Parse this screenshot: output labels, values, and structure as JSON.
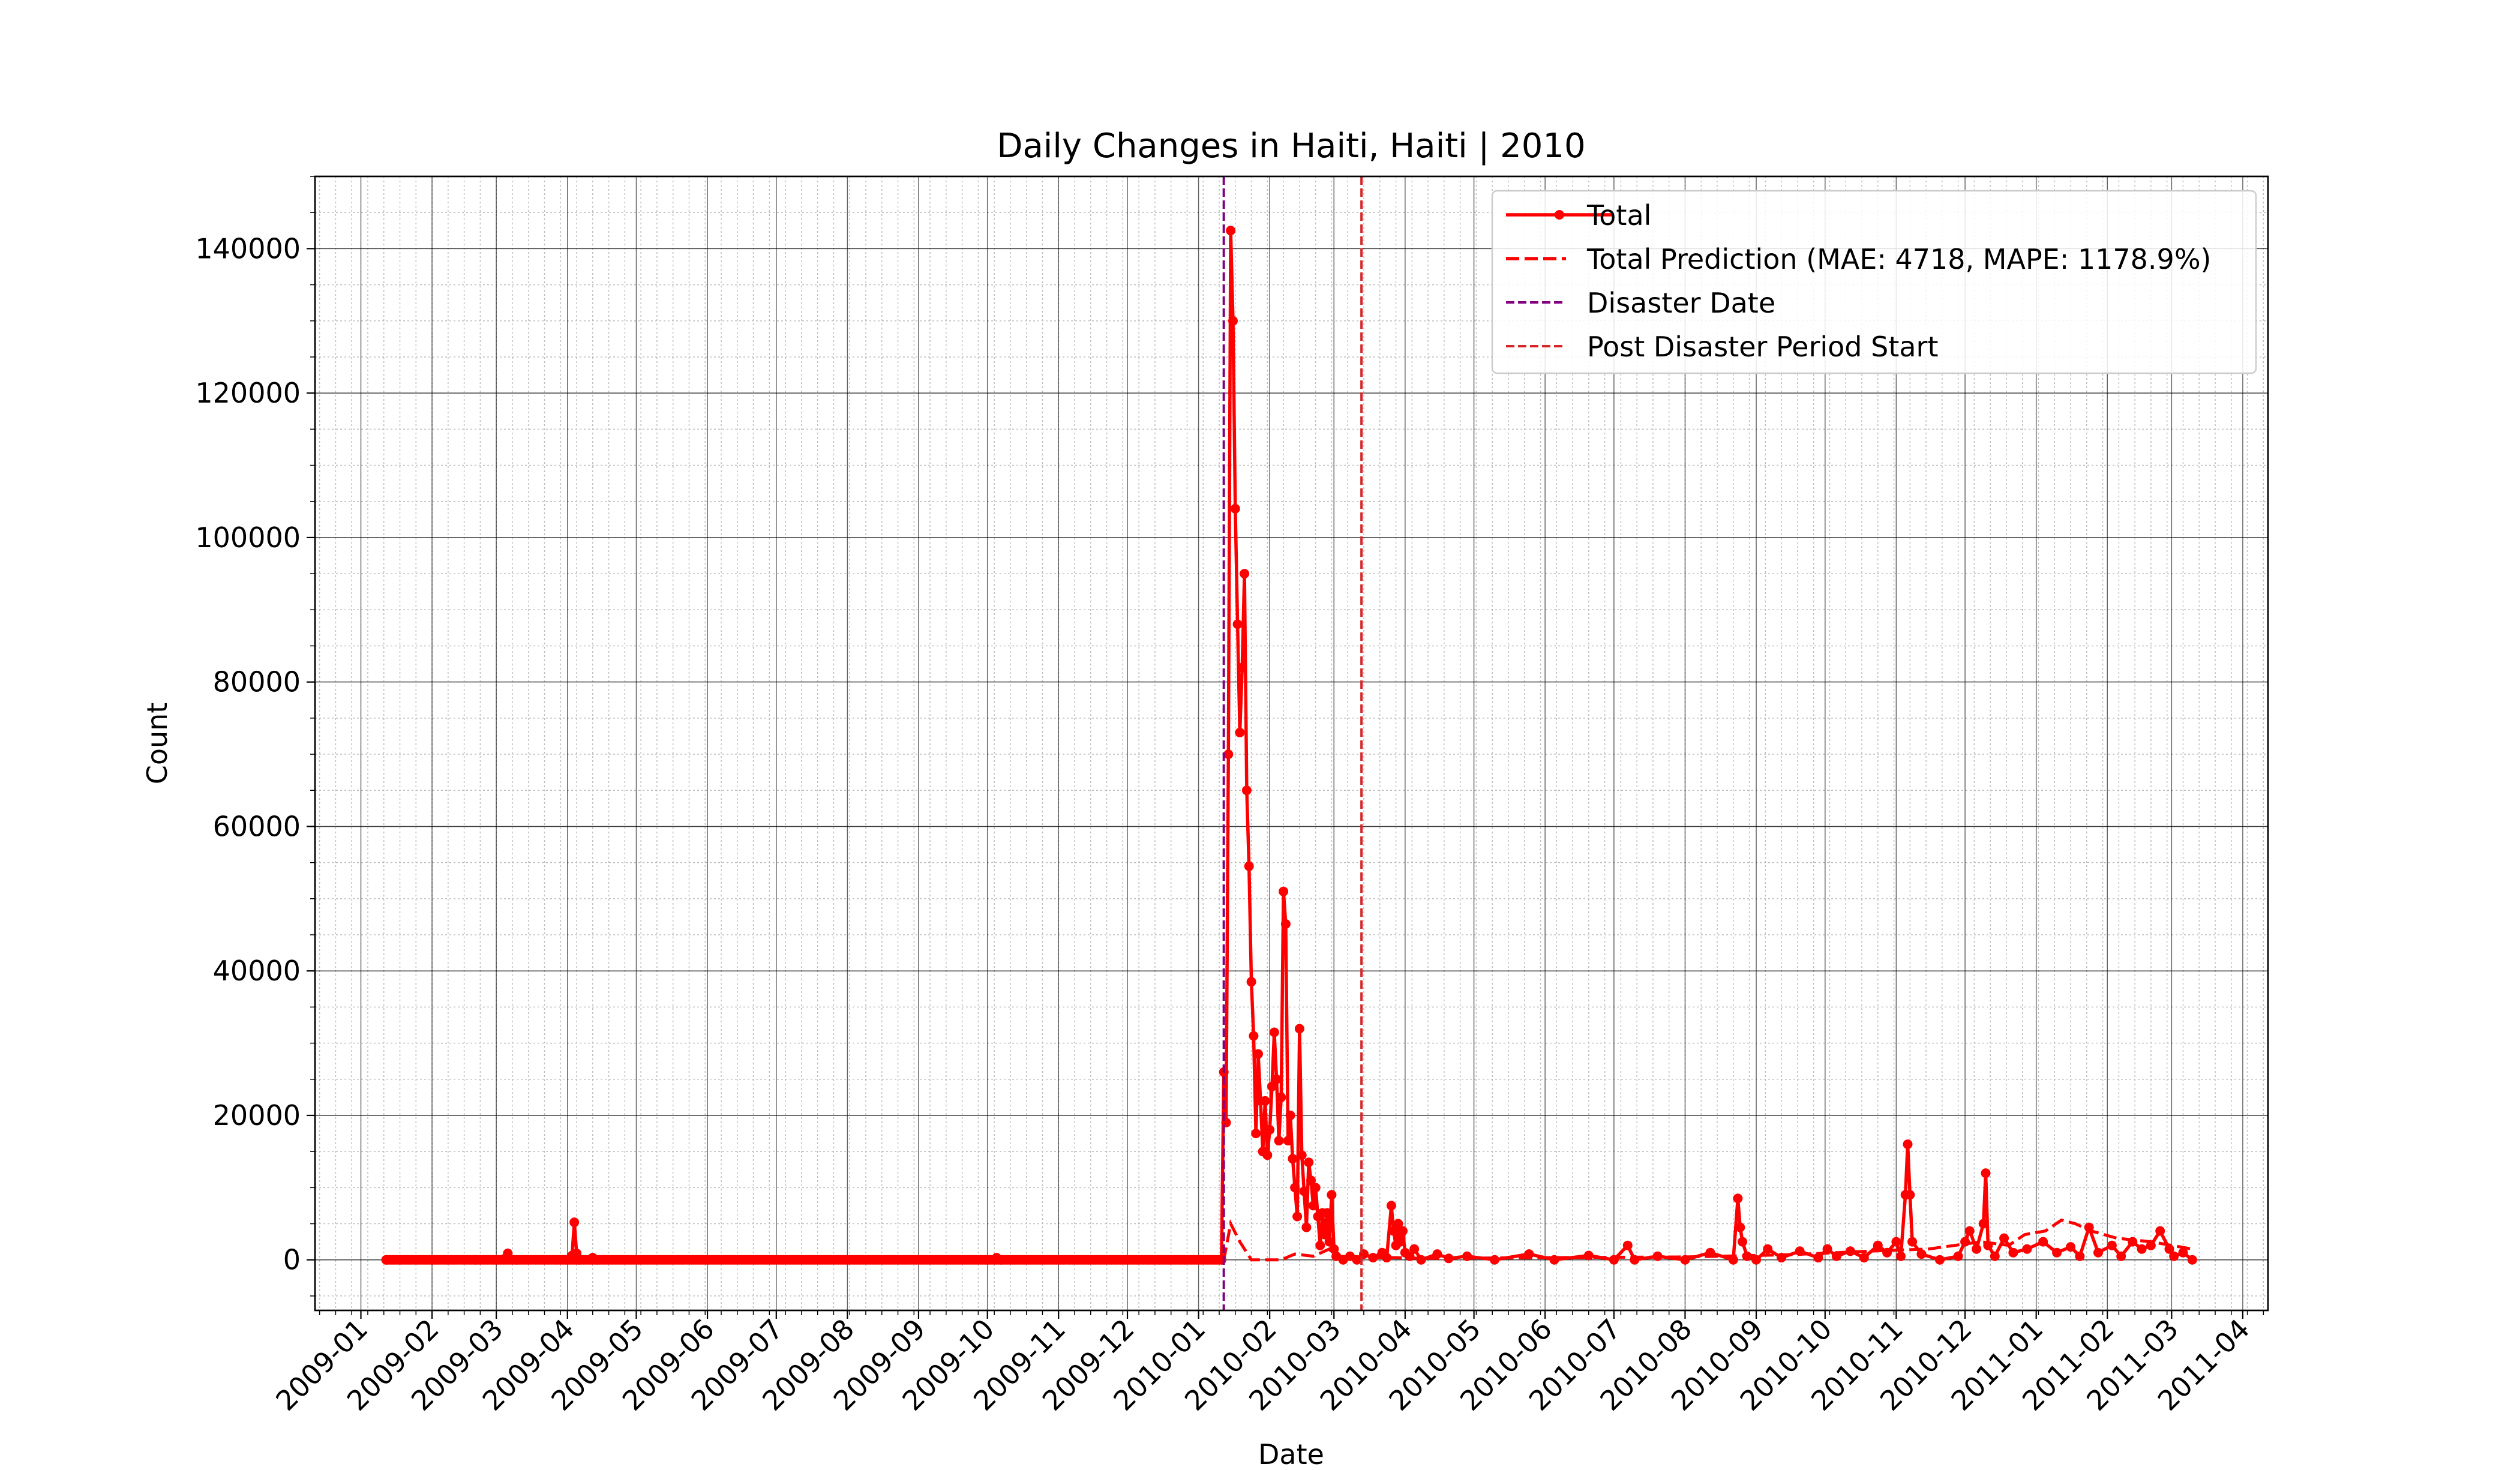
{
  "chart_data": {
    "type": "line",
    "title": "Daily Changes in Haiti, Haiti | 2010",
    "xlabel": "Date",
    "ylabel": "Count",
    "xlim": [
      "2008-12-12",
      "2011-04-12"
    ],
    "ylim": [
      -7000,
      150000
    ],
    "x_ticks": [
      "2009-01",
      "2009-02",
      "2009-03",
      "2009-04",
      "2009-05",
      "2009-06",
      "2009-07",
      "2009-08",
      "2009-09",
      "2009-10",
      "2009-11",
      "2009-12",
      "2010-01",
      "2010-02",
      "2010-03",
      "2010-04",
      "2010-05",
      "2010-06",
      "2010-07",
      "2010-08",
      "2010-09",
      "2010-10",
      "2010-11",
      "2010-12",
      "2011-01",
      "2011-02",
      "2011-03",
      "2011-04"
    ],
    "y_ticks": [
      0,
      20000,
      40000,
      60000,
      80000,
      100000,
      120000,
      140000
    ],
    "grid": true,
    "legend_position": "top-right",
    "series": [
      {
        "name": "Total",
        "color": "#ff0000",
        "style": "solid-markers",
        "points": [
          [
            "2009-01-12",
            0
          ],
          [
            "2009-02-01",
            0
          ],
          [
            "2009-02-20",
            0
          ],
          [
            "2009-03-01",
            0
          ],
          [
            "2009-03-06",
            900
          ],
          [
            "2009-03-10",
            0
          ],
          [
            "2009-04-01",
            0
          ],
          [
            "2009-04-03",
            600
          ],
          [
            "2009-04-04",
            5200
          ],
          [
            "2009-04-05",
            900
          ],
          [
            "2009-04-06",
            0
          ],
          [
            "2009-04-12",
            300
          ],
          [
            "2009-04-14",
            0
          ],
          [
            "2009-06-01",
            0
          ],
          [
            "2009-08-01",
            0
          ],
          [
            "2009-10-01",
            0
          ],
          [
            "2009-10-05",
            300
          ],
          [
            "2009-10-07",
            0
          ],
          [
            "2009-12-01",
            0
          ],
          [
            "2010-01-11",
            0
          ],
          [
            "2010-01-12",
            26000
          ],
          [
            "2010-01-13",
            19000
          ],
          [
            "2010-01-14",
            70000
          ],
          [
            "2010-01-15",
            142500
          ],
          [
            "2010-01-16",
            130000
          ],
          [
            "2010-01-17",
            104000
          ],
          [
            "2010-01-18",
            88000
          ],
          [
            "2010-01-19",
            73000
          ],
          [
            "2010-01-20",
            82000
          ],
          [
            "2010-01-21",
            95000
          ],
          [
            "2010-01-22",
            65000
          ],
          [
            "2010-01-23",
            54500
          ],
          [
            "2010-01-24",
            38500
          ],
          [
            "2010-01-25",
            31000
          ],
          [
            "2010-01-26",
            17500
          ],
          [
            "2010-01-27",
            28500
          ],
          [
            "2010-01-28",
            22000
          ],
          [
            "2010-01-29",
            15000
          ],
          [
            "2010-01-30",
            22000
          ],
          [
            "2010-01-31",
            14500
          ],
          [
            "2010-02-01",
            18000
          ],
          [
            "2010-02-02",
            24000
          ],
          [
            "2010-02-03",
            31500
          ],
          [
            "2010-02-04",
            25000
          ],
          [
            "2010-02-05",
            16500
          ],
          [
            "2010-02-06",
            22500
          ],
          [
            "2010-02-07",
            51000
          ],
          [
            "2010-02-08",
            46500
          ],
          [
            "2010-02-09",
            16500
          ],
          [
            "2010-02-10",
            20000
          ],
          [
            "2010-02-11",
            14000
          ],
          [
            "2010-02-12",
            10000
          ],
          [
            "2010-02-13",
            6000
          ],
          [
            "2010-02-14",
            32000
          ],
          [
            "2010-02-15",
            14500
          ],
          [
            "2010-02-16",
            9500
          ],
          [
            "2010-02-17",
            4500
          ],
          [
            "2010-02-18",
            13500
          ],
          [
            "2010-02-19",
            11000
          ],
          [
            "2010-02-20",
            7500
          ],
          [
            "2010-02-21",
            10000
          ],
          [
            "2010-02-22",
            6000
          ],
          [
            "2010-02-23",
            2000
          ],
          [
            "2010-02-24",
            6500
          ],
          [
            "2010-02-25",
            3500
          ],
          [
            "2010-02-26",
            6500
          ],
          [
            "2010-02-27",
            2500
          ],
          [
            "2010-02-28",
            9000
          ],
          [
            "2010-03-01",
            1500
          ],
          [
            "2010-03-02",
            500
          ],
          [
            "2010-03-05",
            0
          ],
          [
            "2010-03-08",
            500
          ],
          [
            "2010-03-11",
            0
          ],
          [
            "2010-03-14",
            800
          ],
          [
            "2010-03-18",
            300
          ],
          [
            "2010-03-22",
            1000
          ],
          [
            "2010-03-24",
            300
          ],
          [
            "2010-03-26",
            7500
          ],
          [
            "2010-03-27",
            4000
          ],
          [
            "2010-03-28",
            2000
          ],
          [
            "2010-03-29",
            5000
          ],
          [
            "2010-03-30",
            2500
          ],
          [
            "2010-03-31",
            4000
          ],
          [
            "2010-04-01",
            1000
          ],
          [
            "2010-04-03",
            500
          ],
          [
            "2010-04-05",
            1500
          ],
          [
            "2010-04-08",
            0
          ],
          [
            "2010-04-15",
            800
          ],
          [
            "2010-04-20",
            200
          ],
          [
            "2010-04-28",
            500
          ],
          [
            "2010-05-10",
            0
          ],
          [
            "2010-05-25",
            800
          ],
          [
            "2010-06-05",
            0
          ],
          [
            "2010-06-20",
            600
          ],
          [
            "2010-07-01",
            0
          ],
          [
            "2010-07-07",
            2000
          ],
          [
            "2010-07-10",
            0
          ],
          [
            "2010-07-20",
            500
          ],
          [
            "2010-08-01",
            0
          ],
          [
            "2010-08-12",
            1000
          ],
          [
            "2010-08-22",
            0
          ],
          [
            "2010-08-24",
            8500
          ],
          [
            "2010-08-25",
            4500
          ],
          [
            "2010-08-26",
            2500
          ],
          [
            "2010-08-28",
            500
          ],
          [
            "2010-09-01",
            0
          ],
          [
            "2010-09-06",
            1500
          ],
          [
            "2010-09-12",
            300
          ],
          [
            "2010-09-20",
            1200
          ],
          [
            "2010-09-28",
            300
          ],
          [
            "2010-10-02",
            1500
          ],
          [
            "2010-10-06",
            500
          ],
          [
            "2010-10-12",
            1200
          ],
          [
            "2010-10-18",
            300
          ],
          [
            "2010-10-24",
            2000
          ],
          [
            "2010-10-28",
            1000
          ],
          [
            "2010-11-01",
            2500
          ],
          [
            "2010-11-03",
            500
          ],
          [
            "2010-11-05",
            9000
          ],
          [
            "2010-11-06",
            16000
          ],
          [
            "2010-11-07",
            9000
          ],
          [
            "2010-11-08",
            2500
          ],
          [
            "2010-11-12",
            800
          ],
          [
            "2010-11-20",
            0
          ],
          [
            "2010-11-28",
            500
          ],
          [
            "2010-12-01",
            2500
          ],
          [
            "2010-12-03",
            4000
          ],
          [
            "2010-12-06",
            1500
          ],
          [
            "2010-12-09",
            5000
          ],
          [
            "2010-12-10",
            12000
          ],
          [
            "2010-12-11",
            2000
          ],
          [
            "2010-12-14",
            500
          ],
          [
            "2010-12-18",
            3000
          ],
          [
            "2010-12-22",
            1000
          ],
          [
            "2010-12-28",
            1500
          ],
          [
            "2011-01-04",
            2500
          ],
          [
            "2011-01-10",
            1000
          ],
          [
            "2011-01-16",
            1800
          ],
          [
            "2011-01-20",
            500
          ],
          [
            "2011-01-24",
            4500
          ],
          [
            "2011-01-28",
            1000
          ],
          [
            "2011-02-03",
            2000
          ],
          [
            "2011-02-07",
            500
          ],
          [
            "2011-02-12",
            2500
          ],
          [
            "2011-02-16",
            1500
          ],
          [
            "2011-02-20",
            2000
          ],
          [
            "2011-02-24",
            4000
          ],
          [
            "2011-02-28",
            1500
          ],
          [
            "2011-03-02",
            500
          ],
          [
            "2011-03-06",
            1000
          ],
          [
            "2011-03-10",
            0
          ]
        ]
      },
      {
        "name": "Total Prediction (MAE: 4718, MAPE: 1178.9%)",
        "color": "#ff0000",
        "style": "dashed",
        "points": [
          [
            "2009-01-12",
            0
          ],
          [
            "2010-01-12",
            0
          ],
          [
            "2010-01-15",
            5000
          ],
          [
            "2010-01-19",
            2500
          ],
          [
            "2010-01-24",
            0
          ],
          [
            "2010-02-06",
            0
          ],
          [
            "2010-02-12",
            800
          ],
          [
            "2010-02-20",
            500
          ],
          [
            "2010-02-27",
            1500
          ],
          [
            "2010-03-01",
            500
          ],
          [
            "2010-04-10",
            200
          ],
          [
            "2010-06-01",
            300
          ],
          [
            "2010-08-01",
            400
          ],
          [
            "2010-09-15",
            700
          ],
          [
            "2010-10-20",
            1200
          ],
          [
            "2010-11-15",
            1500
          ],
          [
            "2010-12-08",
            2500
          ],
          [
            "2010-12-20",
            2000
          ],
          [
            "2010-12-27",
            3500
          ],
          [
            "2011-01-05",
            4000
          ],
          [
            "2011-01-12",
            5500
          ],
          [
            "2011-01-18",
            5000
          ],
          [
            "2011-01-25",
            4000
          ],
          [
            "2011-02-05",
            3000
          ],
          [
            "2011-02-20",
            2500
          ],
          [
            "2011-03-10",
            1500
          ]
        ]
      }
    ],
    "vlines": [
      {
        "name": "Disaster Date",
        "date": "2010-01-12",
        "color": "#800080"
      },
      {
        "name": "Post Disaster Period Start",
        "date": "2010-03-13",
        "color": "#d62728"
      }
    ]
  }
}
